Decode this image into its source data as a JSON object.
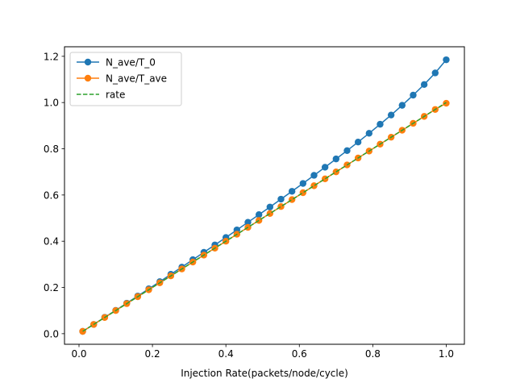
{
  "chart_data": {
    "type": "line",
    "title": "",
    "xlabel": "Injection Rate(packets/node/cycle)",
    "ylabel": "",
    "xlim": [
      -0.0395,
      1.0495
    ],
    "ylim": [
      -0.0458,
      1.2413
    ],
    "xticks": [
      0.0,
      0.2,
      0.4,
      0.6,
      0.8,
      1.0
    ],
    "xtick_labels": [
      "0.0",
      "0.2",
      "0.4",
      "0.6",
      "0.8",
      "1.0"
    ],
    "yticks": [
      0.0,
      0.2,
      0.4,
      0.6,
      0.8,
      1.0,
      1.2
    ],
    "ytick_labels": [
      "0.0",
      "0.2",
      "0.4",
      "0.6",
      "0.8",
      "1.0",
      "1.2"
    ],
    "grid": false,
    "legend": "upper-left",
    "x": [
      0.01,
      0.04,
      0.07,
      0.1,
      0.13,
      0.16,
      0.19,
      0.22,
      0.25,
      0.28,
      0.31,
      0.34,
      0.37,
      0.4,
      0.43,
      0.46,
      0.49,
      0.52,
      0.55,
      0.58,
      0.61,
      0.64,
      0.67,
      0.7,
      0.73,
      0.76,
      0.79,
      0.82,
      0.85,
      0.88,
      0.91,
      0.94,
      0.97,
      1.0
    ],
    "series": [
      {
        "name": "N_ave/T_0",
        "color": "#1f77b4",
        "style": "line-marker",
        "values": [
          0.01,
          0.04,
          0.071,
          0.101,
          0.132,
          0.163,
          0.194,
          0.225,
          0.257,
          0.288,
          0.32,
          0.352,
          0.384,
          0.416,
          0.449,
          0.482,
          0.515,
          0.548,
          0.582,
          0.616,
          0.65,
          0.685,
          0.72,
          0.756,
          0.792,
          0.829,
          0.867,
          0.906,
          0.946,
          0.988,
          1.032,
          1.078,
          1.128,
          1.185
        ]
      },
      {
        "name": "N_ave/T_ave",
        "color": "#ff7f0e",
        "style": "line-marker",
        "values": [
          0.01,
          0.04,
          0.07,
          0.1,
          0.13,
          0.16,
          0.19,
          0.22,
          0.25,
          0.28,
          0.31,
          0.34,
          0.37,
          0.4,
          0.43,
          0.46,
          0.49,
          0.52,
          0.55,
          0.58,
          0.61,
          0.64,
          0.67,
          0.7,
          0.73,
          0.76,
          0.79,
          0.82,
          0.85,
          0.88,
          0.91,
          0.94,
          0.97,
          0.997
        ]
      },
      {
        "name": "rate",
        "color": "#2ca02c",
        "style": "dashed",
        "values": [
          0.01,
          0.04,
          0.07,
          0.1,
          0.13,
          0.16,
          0.19,
          0.22,
          0.25,
          0.28,
          0.31,
          0.34,
          0.37,
          0.4,
          0.43,
          0.46,
          0.49,
          0.52,
          0.55,
          0.58,
          0.61,
          0.64,
          0.67,
          0.7,
          0.73,
          0.76,
          0.79,
          0.82,
          0.85,
          0.88,
          0.91,
          0.94,
          0.97,
          1.0
        ]
      }
    ]
  }
}
